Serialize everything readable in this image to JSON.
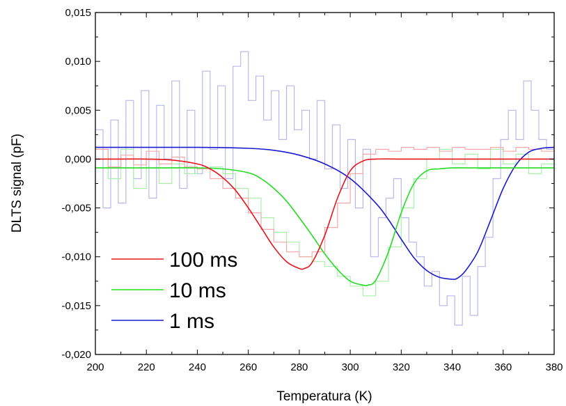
{
  "chart_data": {
    "type": "line",
    "xlabel": "Temperatura (K)",
    "ylabel": "DLTS signal (pF)",
    "xlim": [
      200,
      380
    ],
    "ylim": [
      -0.02,
      0.015
    ],
    "x_ticks": [
      {
        "value": 200,
        "label": "200"
      },
      {
        "value": 220,
        "label": "220"
      },
      {
        "value": 240,
        "label": "240"
      },
      {
        "value": 260,
        "label": "260"
      },
      {
        "value": 280,
        "label": "280"
      },
      {
        "value": 300,
        "label": "300"
      },
      {
        "value": 320,
        "label": "320"
      },
      {
        "value": 340,
        "label": "340"
      },
      {
        "value": 360,
        "label": "360"
      },
      {
        "value": 380,
        "label": "380"
      }
    ],
    "y_ticks": [
      {
        "value": 0.015,
        "label": "0,015"
      },
      {
        "value": 0.01,
        "label": "0,010"
      },
      {
        "value": 0.005,
        "label": "0,005"
      },
      {
        "value": 0.0,
        "label": "0,000"
      },
      {
        "value": -0.005,
        "label": "-0,005"
      },
      {
        "value": -0.01,
        "label": "-0,010"
      },
      {
        "value": -0.015,
        "label": "-0,015"
      },
      {
        "value": -0.02,
        "label": "-0,020"
      }
    ],
    "grid": false,
    "legend_position": "bottom-left",
    "series": [
      {
        "name": "100 ms",
        "color": "#e8141c",
        "noise_color": "#f7a8a8",
        "fit": {
          "x": [
            200,
            210,
            220,
            230,
            240,
            245,
            250,
            255,
            260,
            265,
            270,
            275,
            280,
            282,
            285,
            290,
            295,
            300,
            305,
            310,
            320,
            330,
            340,
            360,
            380
          ],
          "y": [
            0.0,
            0.0,
            0.0,
            -0.0001,
            -0.0005,
            -0.001,
            -0.0019,
            -0.0032,
            -0.005,
            -0.007,
            -0.009,
            -0.0105,
            -0.0112,
            -0.0112,
            -0.0106,
            -0.0078,
            -0.004,
            -0.0012,
            -0.0002,
            0.0,
            0.0,
            0.0,
            0.0,
            0.0,
            0.0
          ]
        },
        "noisy": {
          "x": [
            200,
            205,
            210,
            215,
            220,
            225,
            230,
            235,
            240,
            245,
            250,
            255,
            260,
            265,
            270,
            275,
            280,
            285,
            290,
            295,
            300,
            305,
            310,
            315,
            320,
            325,
            330,
            335,
            340,
            345,
            350,
            355,
            360,
            365,
            370,
            375,
            380
          ],
          "y": [
            0.001,
            -0.0008,
            0.0004,
            -0.0006,
            0.0008,
            -0.0005,
            0.0002,
            -0.0008,
            -0.001,
            -0.002,
            -0.003,
            -0.004,
            -0.0055,
            -0.0072,
            -0.0085,
            -0.0095,
            -0.01,
            -0.0095,
            -0.007,
            -0.0045,
            -0.0015,
            0.0005,
            0.001,
            0.0008,
            0.0012,
            0.001,
            0.0012,
            0.0008,
            0.0012,
            0.001,
            0.001,
            0.0012,
            0.0008,
            0.0012,
            0.001,
            0.0008,
            0.001
          ]
        }
      },
      {
        "name": "10 ms",
        "color": "#22dd22",
        "noise_color": "#a9f0a9",
        "fit": {
          "x": [
            200,
            220,
            240,
            250,
            260,
            265,
            270,
            275,
            280,
            285,
            290,
            295,
            300,
            305,
            307,
            310,
            315,
            320,
            325,
            330,
            335,
            340,
            350,
            360,
            380
          ],
          "y": [
            -0.0009,
            -0.0009,
            -0.0009,
            -0.001,
            -0.0014,
            -0.002,
            -0.003,
            -0.0043,
            -0.006,
            -0.0078,
            -0.0097,
            -0.0113,
            -0.0125,
            -0.0129,
            -0.0129,
            -0.0124,
            -0.0095,
            -0.0055,
            -0.0025,
            -0.0012,
            -0.001,
            -0.0009,
            -0.0009,
            -0.0009,
            -0.0009
          ]
        },
        "noisy": {
          "x": [
            200,
            205,
            210,
            215,
            220,
            225,
            230,
            235,
            240,
            245,
            250,
            255,
            260,
            265,
            270,
            275,
            280,
            285,
            290,
            295,
            300,
            305,
            310,
            315,
            320,
            325,
            330,
            335,
            340,
            345,
            350,
            355,
            360,
            365,
            370,
            375,
            380
          ],
          "y": [
            0.001,
            -0.002,
            0.001,
            -0.003,
            0.0,
            -0.0025,
            -0.0005,
            -0.0015,
            -0.001,
            -0.0008,
            -0.0015,
            -0.003,
            -0.004,
            -0.006,
            -0.0075,
            -0.0085,
            -0.01,
            -0.0105,
            -0.011,
            -0.012,
            -0.013,
            -0.014,
            -0.0125,
            -0.009,
            -0.005,
            -0.002,
            0.0,
            0.001,
            -0.0005,
            0.0005,
            -0.001,
            0.001,
            -0.0005,
            0.0005,
            -0.0015,
            -0.0005,
            -0.001
          ]
        }
      },
      {
        "name": "1 ms",
        "color": "#1a1ad0",
        "noise_color": "#b8b8ec",
        "fit": {
          "x": [
            200,
            240,
            260,
            270,
            280,
            290,
            300,
            310,
            315,
            320,
            325,
            330,
            335,
            340,
            342,
            345,
            350,
            355,
            360,
            365,
            370,
            375,
            380
          ],
          "y": [
            0.0012,
            0.0012,
            0.0011,
            0.0009,
            0.0004,
            -0.0005,
            -0.002,
            -0.0045,
            -0.0062,
            -0.0082,
            -0.0101,
            -0.0114,
            -0.0121,
            -0.0123,
            -0.0122,
            -0.0115,
            -0.0095,
            -0.0063,
            -0.003,
            -0.0006,
            0.0007,
            0.0011,
            0.0012
          ]
        },
        "noisy": {
          "x": [
            200,
            203,
            206,
            209,
            212,
            215,
            218,
            221,
            224,
            227,
            230,
            233,
            236,
            239,
            242,
            245,
            248,
            251,
            254,
            257,
            260,
            263,
            266,
            269,
            272,
            275,
            278,
            281,
            284,
            287,
            290,
            293,
            296,
            299,
            302,
            305,
            308,
            311,
            314,
            317,
            320,
            323,
            326,
            329,
            332,
            335,
            338,
            341,
            344,
            347,
            350,
            353,
            356,
            359,
            362,
            365,
            368,
            371,
            374,
            377,
            380
          ],
          "y": [
            0.003,
            -0.005,
            0.004,
            -0.0045,
            0.006,
            -0.002,
            0.007,
            -0.004,
            0.0055,
            0.0,
            0.008,
            -0.003,
            0.005,
            -0.0015,
            0.009,
            0.001,
            0.0075,
            -0.002,
            0.0095,
            0.011,
            0.006,
            0.0085,
            0.004,
            0.007,
            0.002,
            0.0075,
            0.003,
            0.005,
            0.0,
            0.006,
            -0.001,
            0.0035,
            -0.003,
            0.002,
            -0.005,
            0.001,
            -0.01,
            -0.006,
            -0.004,
            -0.002,
            -0.006,
            -0.0085,
            -0.01,
            -0.013,
            -0.0115,
            -0.015,
            -0.014,
            -0.017,
            -0.012,
            -0.016,
            -0.011,
            -0.008,
            -0.002,
            0.002,
            0.005,
            0.002,
            0.008,
            0.005,
            0.002,
            0.001,
            -0.003
          ]
        }
      }
    ]
  }
}
